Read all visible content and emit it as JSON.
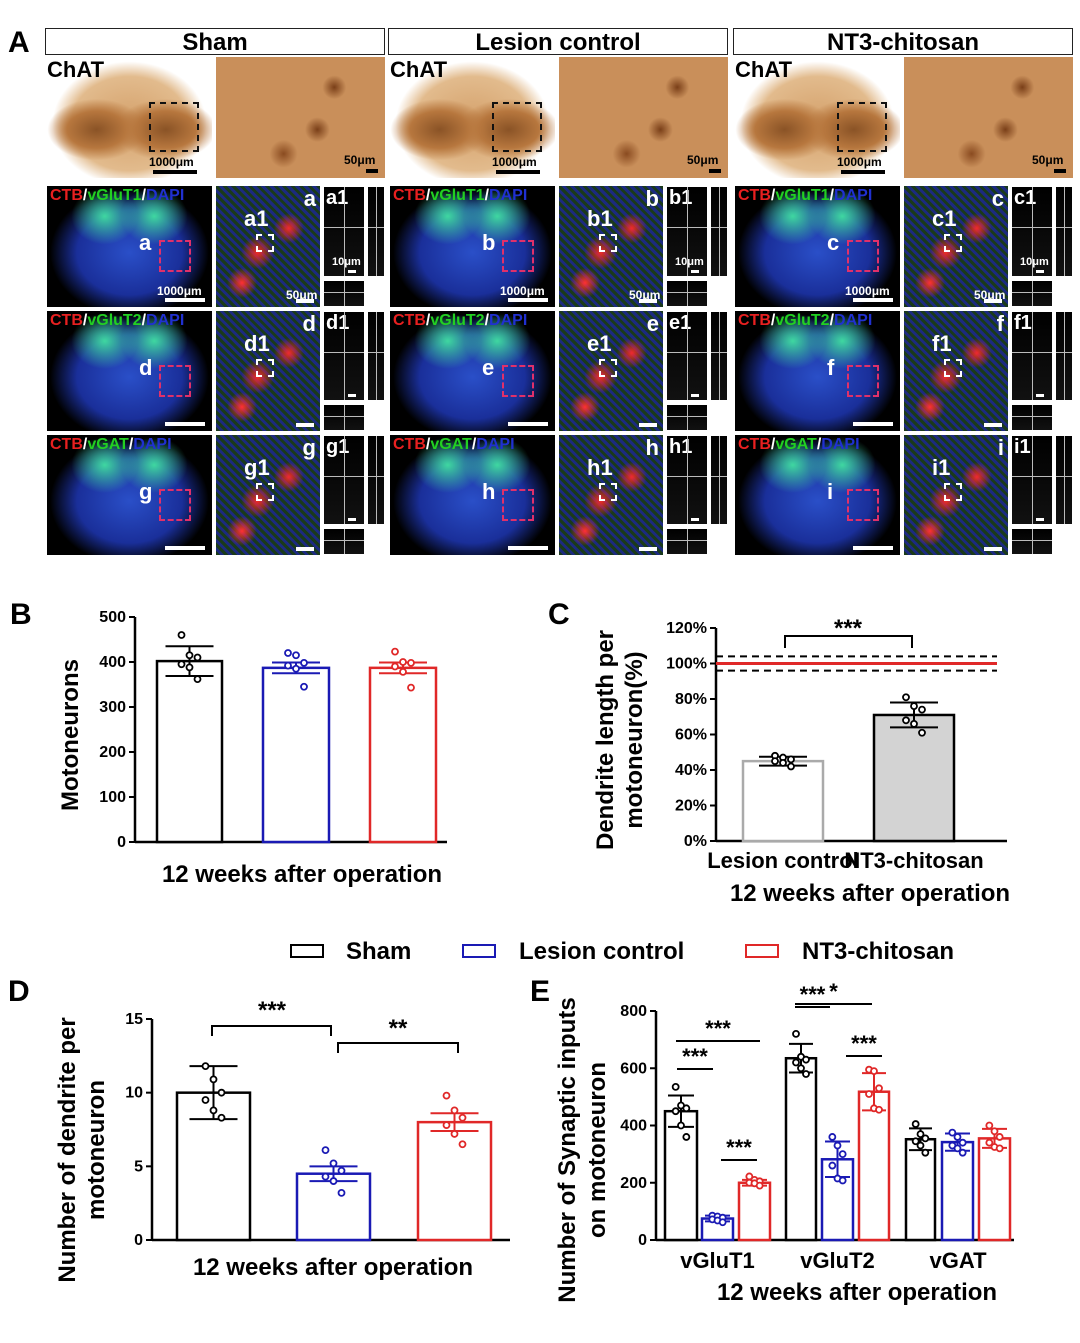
{
  "panel_letters": {
    "A": "A",
    "B": "B",
    "C": "C",
    "D": "D",
    "E": "E"
  },
  "panelA": {
    "groups": [
      "Sham",
      "Lesion control",
      "NT3-chitosan"
    ],
    "chat_label": "ChAT",
    "chat_scale_overview": "1000μm",
    "chat_scale_zoom": "50μm",
    "stains": [
      {
        "ctb": "CTB",
        "sep": "/",
        "marker": "vGluT1",
        "sep2": "/",
        "dapi": "DAPI"
      },
      {
        "ctb": "CTB",
        "sep": "/",
        "marker": "vGluT2",
        "sep2": "/",
        "dapi": "DAPI"
      },
      {
        "ctb": "CTB",
        "sep": "/",
        "marker": "vGAT",
        "sep2": "/",
        "dapi": "DAPI"
      }
    ],
    "letters": [
      [
        "a",
        "b",
        "c"
      ],
      [
        "d",
        "e",
        "f"
      ],
      [
        "g",
        "h",
        "i"
      ]
    ],
    "insets": [
      [
        "a1",
        "b1",
        "c1"
      ],
      [
        "d1",
        "e1",
        "f1"
      ],
      [
        "g1",
        "h1",
        "i1"
      ]
    ],
    "row1_scales": {
      "overview": "1000μm",
      "zoom": "50μm",
      "ortho": "10μm"
    }
  },
  "legend": [
    {
      "label": "Sham",
      "color": "#000000"
    },
    {
      "label": "Lesion control",
      "color": "#1a1ab4"
    },
    {
      "label": "NT3-chitosan",
      "color": "#e02828"
    }
  ],
  "chart_data": [
    {
      "id": "B",
      "type": "bar",
      "xlabel": "12 weeks after operation",
      "ylabel": "Motoneurons",
      "ylim": [
        0,
        500
      ],
      "yticks": [
        "0",
        "100",
        "200",
        "300",
        "400",
        "500"
      ],
      "categories": [
        "Sham",
        "Lesion control",
        "NT3-chitosan"
      ],
      "values": [
        402,
        387,
        387
      ],
      "errors": [
        33,
        12,
        12
      ],
      "points": [
        [
          460,
          415,
          410,
          395,
          388,
          362
        ],
        [
          420,
          415,
          398,
          392,
          385,
          345
        ],
        [
          423,
          400,
          398,
          390,
          378,
          343
        ]
      ],
      "colors": [
        "#000000",
        "#1a1ab4",
        "#e02828"
      ]
    },
    {
      "id": "C",
      "type": "bar",
      "xlabel": "12 weeks after operation",
      "ylabel": "Dendrite length per motoneuron(%)",
      "ylim": [
        0,
        120
      ],
      "yticks": [
        "0%",
        "20%",
        "40%",
        "60%",
        "80%",
        "100%",
        "120%"
      ],
      "categories": [
        "Lesion control",
        "NT3-chitosan"
      ],
      "values": [
        45,
        71
      ],
      "errors": [
        2.5,
        7
      ],
      "points": [
        [
          48,
          47,
          46,
          45,
          44,
          42
        ],
        [
          81,
          76,
          74,
          68,
          66,
          61
        ]
      ],
      "reference": {
        "value": 100,
        "lower": 96,
        "upper": 104,
        "color": "#e02828"
      },
      "colors": [
        "#aaaaaa",
        "#000000"
      ],
      "fills": [
        "#ffffff",
        "#d3d3d3"
      ],
      "significance": [
        {
          "from": 0,
          "to": 1,
          "label": "***"
        }
      ]
    },
    {
      "id": "D",
      "type": "bar",
      "xlabel": "12 weeks after operation",
      "ylabel": "Number of dendrite per motoneuron",
      "ylim": [
        0,
        15
      ],
      "yticks": [
        "0",
        "5",
        "10",
        "15"
      ],
      "categories": [
        "Sham",
        "Lesion control",
        "NT3-chitosan"
      ],
      "values": [
        10,
        4.5,
        8
      ],
      "errors": [
        1.8,
        0.5,
        0.6
      ],
      "points": [
        [
          11.8,
          10.9,
          10,
          9.5,
          8.8,
          8.3
        ],
        [
          6.1,
          5.2,
          4.7,
          4.3,
          4,
          3.2
        ],
        [
          9.8,
          8.8,
          8.3,
          7.8,
          7.2,
          6.5
        ]
      ],
      "colors": [
        "#000000",
        "#1a1ab4",
        "#e02828"
      ],
      "significance": [
        {
          "from": 0,
          "to": 1,
          "label": "***"
        },
        {
          "from": 1,
          "to": 2,
          "label": "**"
        }
      ]
    },
    {
      "id": "E",
      "type": "bar",
      "xlabel": "12 weeks after operation",
      "ylabel": "Number of Synaptic inputs on motoneuron",
      "ylim": [
        0,
        800
      ],
      "yticks": [
        "0",
        "200",
        "400",
        "600",
        "800"
      ],
      "categories": [
        "vGluT1",
        "vGluT2",
        "vGAT"
      ],
      "series": [
        {
          "name": "Sham",
          "values": [
            450,
            635,
            352
          ],
          "errors": [
            55,
            50,
            38
          ],
          "points": [
            [
              535,
              470,
              460,
              450,
              400,
              360
            ],
            [
              720,
              640,
              630,
              620,
              600,
              580
            ],
            [
              405,
              370,
              355,
              345,
              330,
              305
            ]
          ]
        },
        {
          "name": "Lesion control",
          "values": [
            75,
            282,
            342
          ],
          "errors": [
            10,
            62,
            30
          ],
          "points": [
            [
              85,
              82,
              78,
              72,
              68,
              62
            ],
            [
              360,
              330,
              300,
              260,
              215,
              208
            ],
            [
              375,
              360,
              340,
              330,
              320,
              305
            ]
          ]
        },
        {
          "name": "NT3-chitosan",
          "values": [
            200,
            518,
            355
          ],
          "errors": [
            10,
            65,
            33
          ],
          "points": [
            [
              222,
              210,
              205,
              200,
              198,
              190
            ],
            [
              595,
              590,
              530,
              510,
              460,
              455
            ],
            [
              400,
              380,
              360,
              340,
              325,
              320
            ]
          ]
        }
      ],
      "colors": [
        "#000000",
        "#1a1ab4",
        "#e02828"
      ],
      "significance": [
        {
          "group": "vGluT1",
          "pair": "Sham-Lesion control",
          "label": "***"
        },
        {
          "group": "vGluT1",
          "pair": "Sham-NT3-chitosan",
          "label": "***"
        },
        {
          "group": "vGluT1",
          "pair": "Lesion control-NT3-chitosan",
          "label": "***"
        },
        {
          "group": "vGluT2",
          "pair": "Sham-Lesion control",
          "label": "***"
        },
        {
          "group": "vGluT2",
          "pair": "Sham-NT3-chitosan",
          "label": "*"
        },
        {
          "group": "vGluT2",
          "pair": "Lesion control-NT3-chitosan",
          "label": "***"
        }
      ]
    }
  ]
}
